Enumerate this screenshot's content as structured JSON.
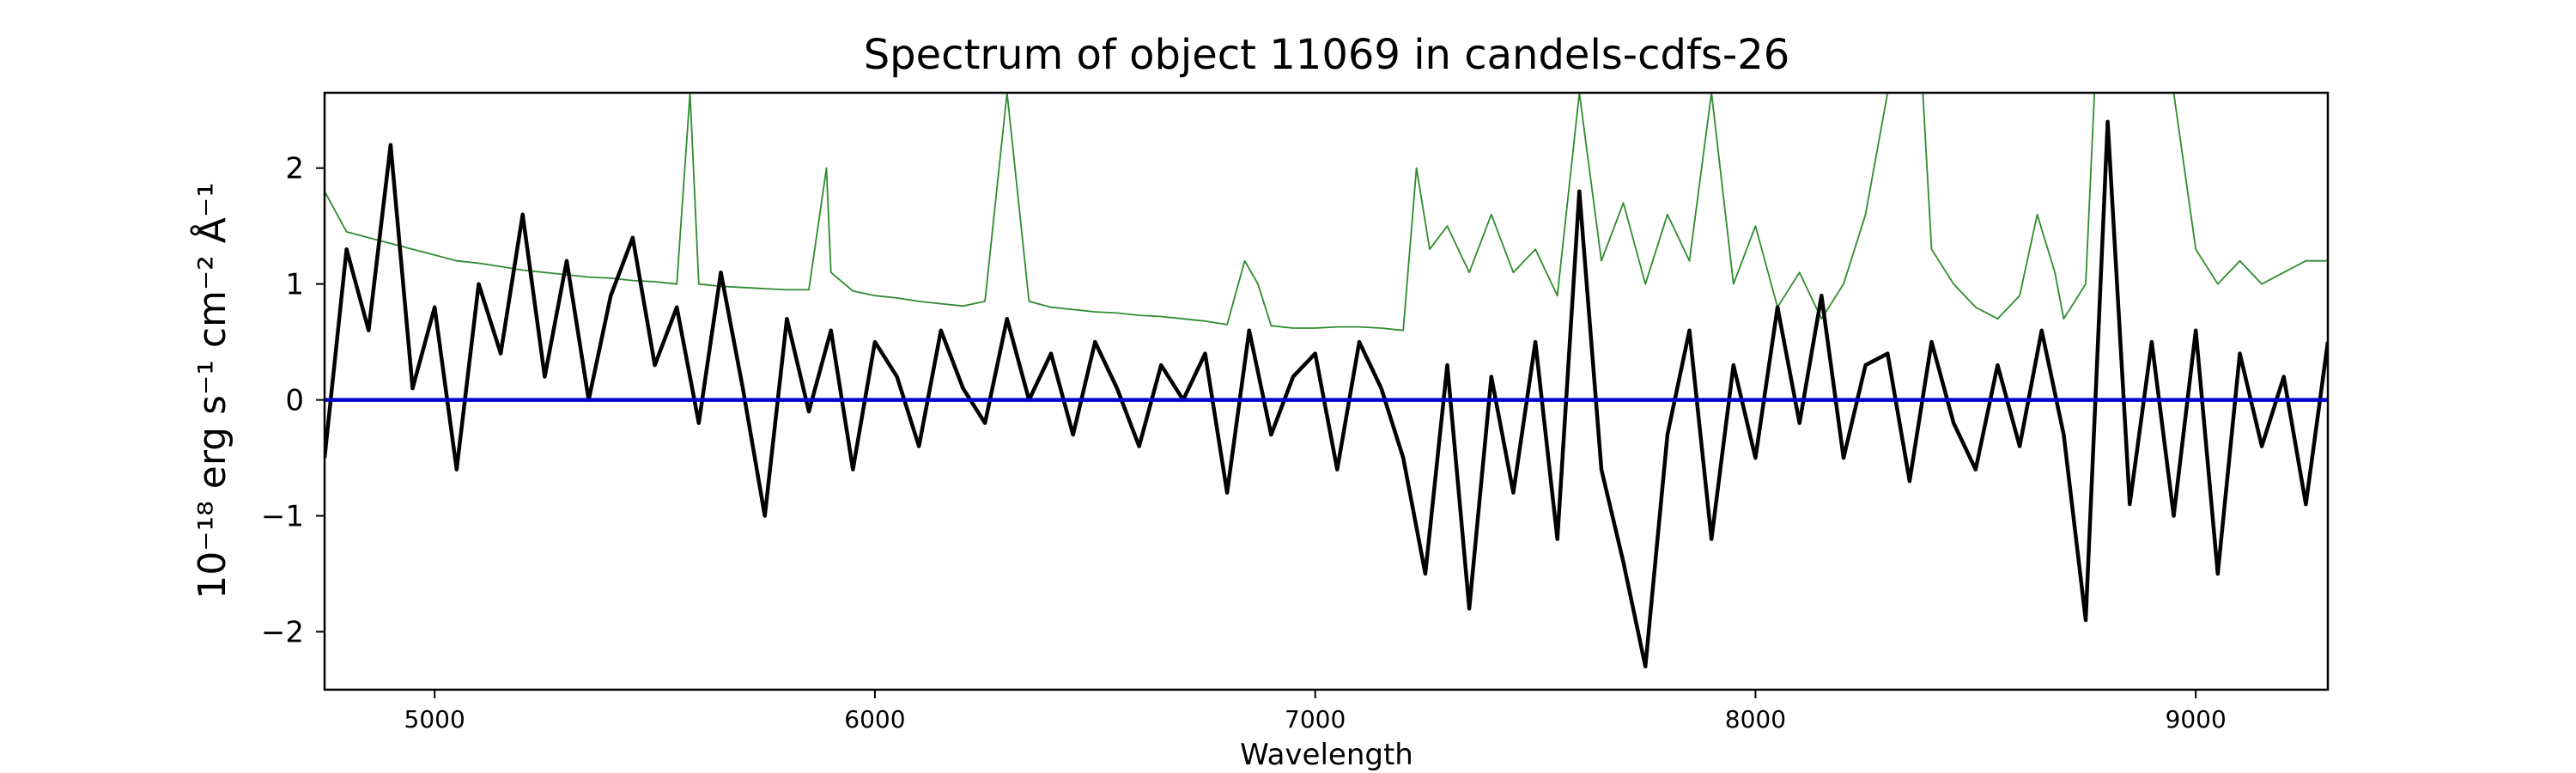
{
  "chart_data": {
    "type": "line",
    "title": "Spectrum of object 11069 in candels-cdfs-26",
    "xlabel": "Wavelength",
    "ylabel": "10⁻¹⁸ erg s⁻¹ cm⁻² Å⁻¹",
    "xlim": [
      4750,
      9300
    ],
    "ylim": [
      -2.5,
      2.65
    ],
    "xticks": [
      5000,
      6000,
      7000,
      8000,
      9000
    ],
    "yticks": [
      -2,
      -1,
      0,
      1,
      2
    ],
    "grid": false,
    "colors": {
      "flux": "#000000",
      "error": "#2e8b2e",
      "zero": "#0000cc"
    },
    "series": [
      {
        "style": "flux",
        "x": [
          4750,
          4800,
          4850,
          4900,
          4950,
          5000,
          5050,
          5100,
          5150,
          5200,
          5250,
          5300,
          5350,
          5400,
          5450,
          5500,
          5550,
          5600,
          5650,
          5700,
          5750,
          5800,
          5850,
          5900,
          5950,
          6000,
          6050,
          6100,
          6150,
          6200,
          6250,
          6300,
          6350,
          6400,
          6450,
          6500,
          6550,
          6600,
          6650,
          6700,
          6750,
          6800,
          6850,
          6900,
          6950,
          7000,
          7050,
          7100,
          7150,
          7200,
          7250,
          7300,
          7350,
          7400,
          7450,
          7500,
          7550,
          7600,
          7650,
          7700,
          7750,
          7800,
          7850,
          7900,
          7950,
          8000,
          8050,
          8100,
          8150,
          8200,
          8250,
          8300,
          8350,
          8400,
          8450,
          8500,
          8550,
          8600,
          8650,
          8700,
          8750,
          8800,
          8850,
          8900,
          8950,
          9000,
          9050,
          9100,
          9150,
          9200,
          9250,
          9300
        ],
        "y": [
          -0.5,
          1.3,
          0.6,
          2.2,
          0.1,
          0.8,
          -0.6,
          1.0,
          0.4,
          1.6,
          0.2,
          1.2,
          0.0,
          0.9,
          1.4,
          0.3,
          0.8,
          -0.2,
          1.1,
          0.1,
          -1.0,
          0.7,
          -0.1,
          0.6,
          -0.6,
          0.5,
          0.2,
          -0.4,
          0.6,
          0.1,
          -0.2,
          0.7,
          0.0,
          0.4,
          -0.3,
          0.5,
          0.1,
          -0.4,
          0.3,
          0.0,
          0.4,
          -0.8,
          0.6,
          -0.3,
          0.2,
          0.4,
          -0.6,
          0.5,
          0.1,
          -0.5,
          -1.5,
          0.3,
          -1.8,
          0.2,
          -0.8,
          0.5,
          -1.2,
          1.8,
          -0.6,
          -1.4,
          -2.3,
          -0.3,
          0.6,
          -1.2,
          0.3,
          -0.5,
          0.8,
          -0.2,
          0.9,
          -0.5,
          0.3,
          0.4,
          -0.7,
          0.5,
          -0.2,
          -0.6,
          0.3,
          -0.4,
          0.6,
          -0.3,
          -1.9,
          2.4,
          -0.9,
          0.5,
          -1.0,
          0.6,
          -1.5,
          0.4,
          -0.4,
          0.2,
          -0.9,
          0.5
        ]
      },
      {
        "style": "error",
        "x": [
          4750,
          4800,
          4850,
          4900,
          4950,
          5000,
          5050,
          5100,
          5150,
          5200,
          5250,
          5300,
          5350,
          5400,
          5450,
          5500,
          5550,
          5580,
          5600,
          5650,
          5700,
          5750,
          5800,
          5850,
          5890,
          5900,
          5950,
          6000,
          6050,
          6100,
          6150,
          6200,
          6250,
          6300,
          6350,
          6400,
          6450,
          6500,
          6550,
          6600,
          6650,
          6700,
          6750,
          6800,
          6840,
          6870,
          6900,
          6950,
          7000,
          7050,
          7100,
          7150,
          7200,
          7230,
          7260,
          7300,
          7350,
          7400,
          7450,
          7500,
          7550,
          7600,
          7650,
          7700,
          7750,
          7800,
          7850,
          7900,
          7950,
          8000,
          8050,
          8100,
          8150,
          8200,
          8250,
          8300,
          8320,
          8350,
          8380,
          8400,
          8450,
          8500,
          8550,
          8600,
          8640,
          8680,
          8700,
          8750,
          8770,
          8800,
          8850,
          8900,
          8950,
          9000,
          9050,
          9100,
          9150,
          9200,
          9250,
          9300
        ],
        "y": [
          1.8,
          1.45,
          1.4,
          1.35,
          1.3,
          1.25,
          1.2,
          1.18,
          1.15,
          1.12,
          1.1,
          1.08,
          1.06,
          1.05,
          1.03,
          1.02,
          1.0,
          2.65,
          1.0,
          0.98,
          0.97,
          0.96,
          0.95,
          0.95,
          2.0,
          1.1,
          0.94,
          0.9,
          0.88,
          0.85,
          0.83,
          0.81,
          0.85,
          2.65,
          0.85,
          0.8,
          0.78,
          0.76,
          0.75,
          0.73,
          0.72,
          0.7,
          0.68,
          0.65,
          1.2,
          1.0,
          0.64,
          0.62,
          0.62,
          0.63,
          0.63,
          0.62,
          0.6,
          2.0,
          1.3,
          1.5,
          1.1,
          1.6,
          1.1,
          1.3,
          0.9,
          2.65,
          1.2,
          1.7,
          1.0,
          1.6,
          1.2,
          2.65,
          1.0,
          1.5,
          0.8,
          1.1,
          0.7,
          1.0,
          1.6,
          2.65,
          2.65,
          2.65,
          2.65,
          1.3,
          1.0,
          0.8,
          0.7,
          0.9,
          1.6,
          1.1,
          0.7,
          1.0,
          2.65,
          2.65,
          2.65,
          2.65,
          2.65,
          1.3,
          1.0,
          1.2,
          1.0,
          1.1,
          1.2,
          1.2
        ]
      },
      {
        "style": "zero",
        "x": [
          4750,
          9300
        ],
        "y": [
          0,
          0
        ]
      }
    ]
  }
}
